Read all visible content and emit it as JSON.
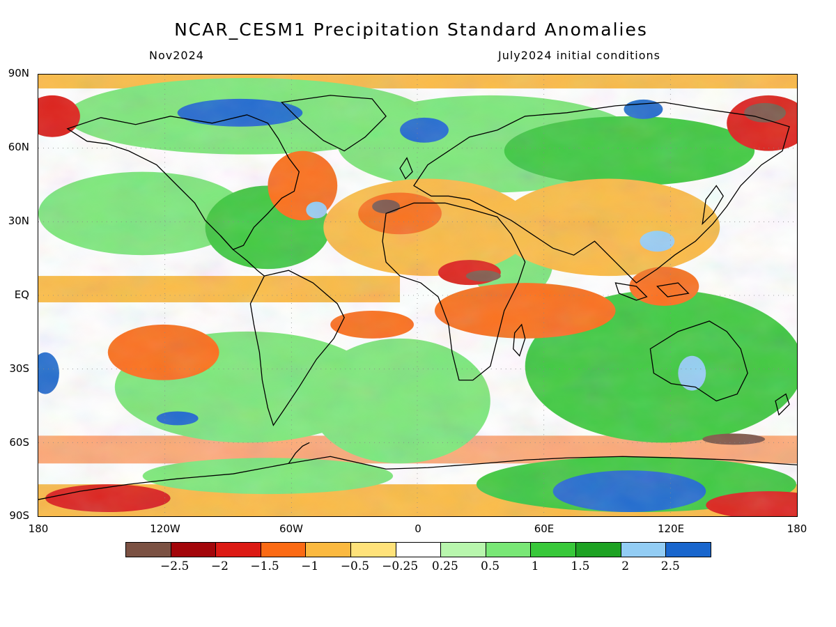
{
  "title": "NCAR_CESM1 Precipitation Standard Anomalies",
  "subtitle_left": "Nov2024",
  "subtitle_right": "July2024 initial conditions",
  "lat_labels": [
    "90N",
    "60N",
    "30N",
    "EQ",
    "30S",
    "60S",
    "90S"
  ],
  "lon_labels": [
    "180",
    "120W",
    "60W",
    "0",
    "60E",
    "120E",
    "180"
  ],
  "colorbar": {
    "colors": [
      "#7b5143",
      "#a3060a",
      "#dc1a14",
      "#fb6a14",
      "#fbb940",
      "#ffe27a",
      "#ffffff",
      "#b8f6ad",
      "#79e776",
      "#38c83a",
      "#1ea223",
      "#93cdf4",
      "#1966cd"
    ],
    "labels": [
      "-2.5",
      "-2",
      "-1.5",
      "-1",
      "-0.5",
      "-0.25",
      "0.25",
      "0.5",
      "1",
      "1.5",
      "2",
      "2.5"
    ]
  }
}
